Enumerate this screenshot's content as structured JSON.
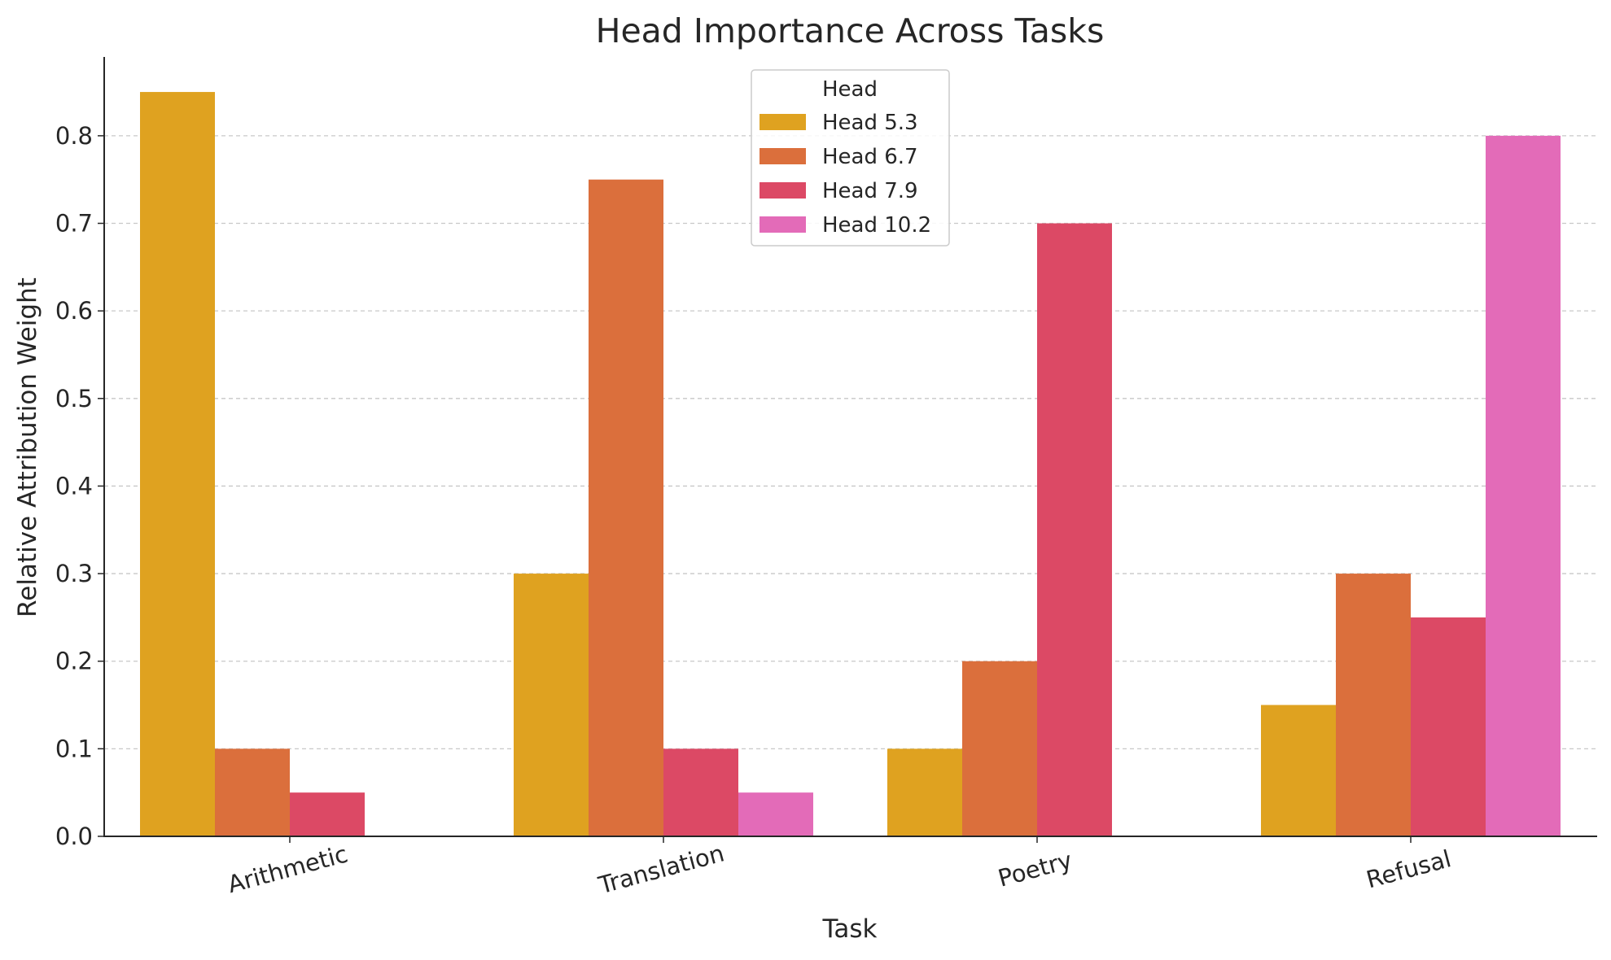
{
  "chart_data": {
    "type": "bar",
    "title": "Head Importance Across Tasks",
    "xlabel": "Task",
    "ylabel": "Relative Attribution Weight",
    "categories": [
      "Arithmetic",
      "Translation",
      "Poetry",
      "Refusal"
    ],
    "series": [
      {
        "name": "Head 5.3",
        "color": "#dfa220",
        "values": [
          0.85,
          0.3,
          0.1,
          0.15
        ]
      },
      {
        "name": "Head 6.7",
        "color": "#db6f3c",
        "values": [
          0.1,
          0.75,
          0.2,
          0.3
        ]
      },
      {
        "name": "Head 7.9",
        "color": "#dc4965",
        "values": [
          0.05,
          0.1,
          0.7,
          0.25
        ]
      },
      {
        "name": "Head 10.2",
        "color": "#e36bb8",
        "values": [
          0.0,
          0.05,
          0.0,
          0.8
        ]
      }
    ],
    "ylim": [
      0,
      0.89
    ],
    "yticks": [
      0.0,
      0.1,
      0.2,
      0.3,
      0.4,
      0.5,
      0.6,
      0.7,
      0.8
    ],
    "ytick_labels": [
      "0.0",
      "0.1",
      "0.2",
      "0.3",
      "0.4",
      "0.5",
      "0.6",
      "0.7",
      "0.8"
    ],
    "grid": "y-dashed",
    "legend": {
      "title": "Head",
      "placement": "top-center"
    }
  }
}
